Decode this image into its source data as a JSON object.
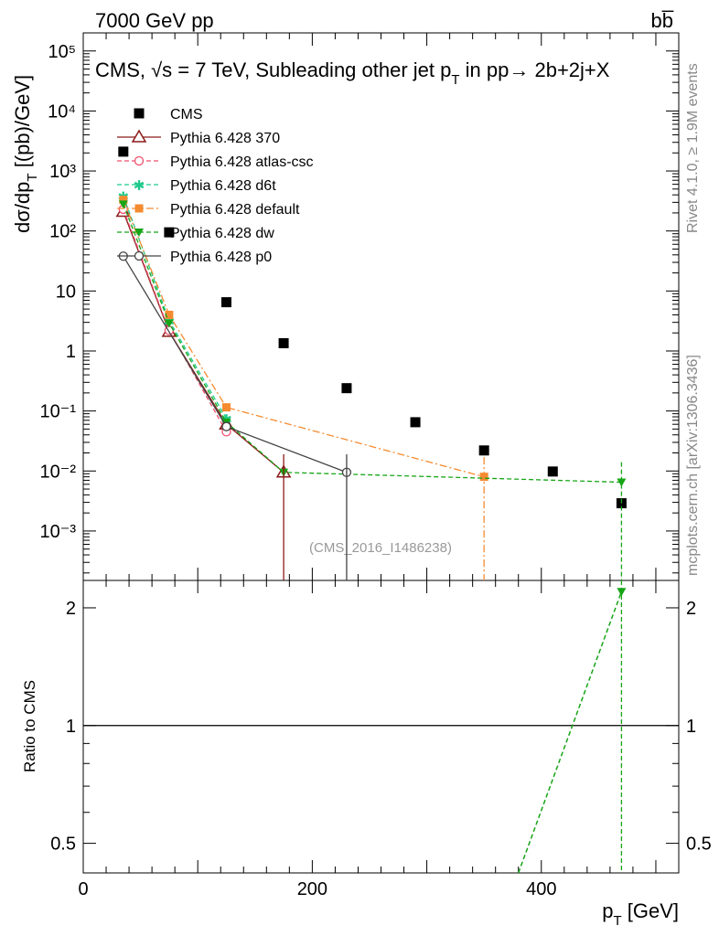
{
  "header": {
    "left": "7000 GeV pp",
    "right": "bb̅"
  },
  "plot_title": "CMS, √s = 7 TeV, Subleading other jet p",
  "plot_title_sub": "T",
  "plot_title_rest": " in pp→  2b+2j+X",
  "side_labels": {
    "rivet": "Rivet 4.1.0, ≥ 1.9M events",
    "mcplots": "mcplots.cern.ch [arXiv:1306.3436]"
  },
  "watermark": "(CMS_2016_I1486238)",
  "y_label_main": "dσ/dp",
  "y_label_main_sub": "T",
  "y_label_main_rest": "  [(pb)/GeV]",
  "y_label_ratio": "Ratio to CMS",
  "x_label": "p",
  "x_label_sub": "T",
  "x_label_rest": " [GeV]",
  "chart_data": [
    {
      "type": "scatter",
      "panel": "main",
      "yscale": "log",
      "xlim": [
        0,
        520
      ],
      "ylim": [
        0.00015,
        200000
      ],
      "x_ticks": [
        0,
        200,
        400
      ],
      "y_tick_labels": [
        "10⁻³",
        "10⁻²",
        "10⁻¹",
        "1",
        "10",
        "10²",
        "10³",
        "10⁴",
        "10⁵"
      ],
      "legend_position": "top-left",
      "series": [
        {
          "name": "CMS",
          "color": "#000000",
          "marker": "square",
          "line": "none",
          "x": [
            35,
            75,
            125,
            175,
            230,
            290,
            350,
            410,
            470
          ],
          "y": [
            2100,
            95,
            6.5,
            1.35,
            0.24,
            0.065,
            0.022,
            0.0098,
            0.0029
          ]
        },
        {
          "name": "Pythia 6.428 370",
          "color": "#8b1a1a",
          "marker": "triangle-open",
          "line": "solid",
          "x": [
            35,
            75,
            125,
            175
          ],
          "y": [
            210,
            2.1,
            0.06,
            0.0095
          ]
        },
        {
          "name": "Pythia 6.428 atlas-csc",
          "color": "#f0506e",
          "marker": "circle-open",
          "line": "dashed",
          "x": [
            35,
            75,
            125
          ],
          "y": [
            230,
            2.2,
            0.045
          ]
        },
        {
          "name": "Pythia 6.428 d6t",
          "color": "#1ec98b",
          "marker": "star",
          "line": "dashed",
          "x": [
            35,
            75,
            125
          ],
          "y": [
            380,
            3.2,
            0.075
          ]
        },
        {
          "name": "Pythia 6.428 default",
          "color": "#f58b30",
          "marker": "square",
          "line": "dashdot",
          "x": [
            35,
            75,
            125,
            350
          ],
          "y": [
            330,
            4.0,
            0.115,
            0.008
          ]
        },
        {
          "name": "Pythia 6.428 dw",
          "color": "#16a516",
          "marker": "triangle-down",
          "line": "dashed",
          "x": [
            35,
            75,
            125,
            175,
            470
          ],
          "y": [
            280,
            2.9,
            0.065,
            0.0095,
            0.0065
          ]
        },
        {
          "name": "Pythia 6.428 p0",
          "color": "#444444",
          "marker": "circle-open",
          "line": "solid",
          "x": [
            35,
            125,
            230
          ],
          "y": [
            38,
            0.055,
            0.0095
          ]
        }
      ]
    },
    {
      "type": "line",
      "panel": "ratio",
      "yscale": "log",
      "xlim": [
        0,
        520
      ],
      "ylim": [
        0.42,
        2.35
      ],
      "y_ticks": [
        0.5,
        1,
        2
      ],
      "reference_line": 1,
      "series": [
        {
          "name": "Pythia 6.428 dw",
          "color": "#16a516",
          "line": "dashed",
          "x": [
            380,
            470
          ],
          "y": [
            0.42,
            2.2
          ]
        }
      ]
    }
  ]
}
